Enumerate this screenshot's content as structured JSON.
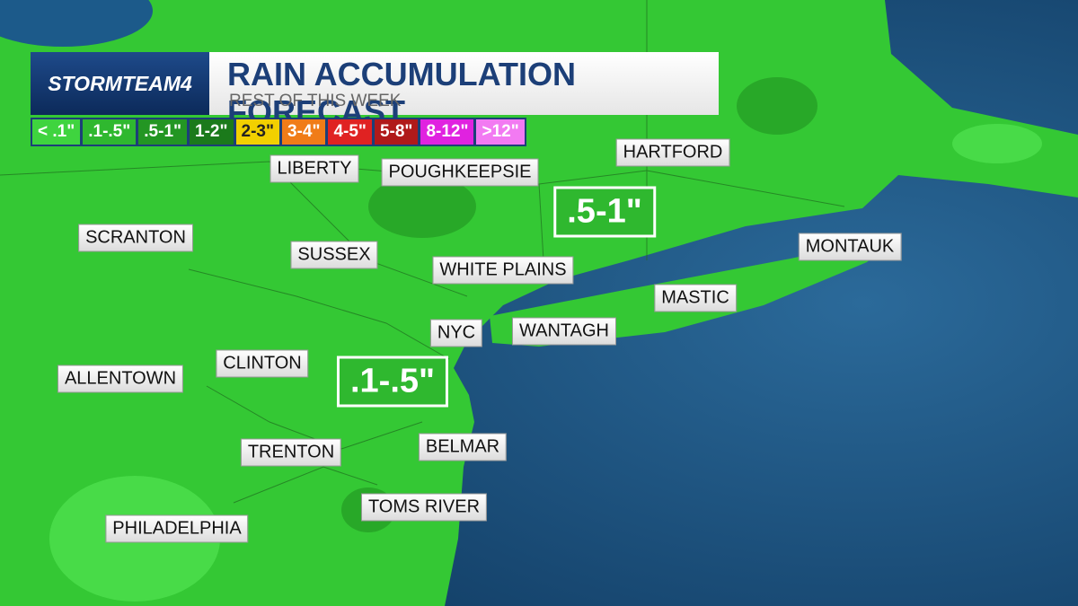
{
  "header": {
    "brand": "STORMTEAM4",
    "title": "RAIN ACCUMULATION FORECAST",
    "subtitle": "REST OF THIS WEEK"
  },
  "legend": [
    {
      "label": "< .1\"",
      "color": "#3fd43f"
    },
    {
      "label": ".1-.5\"",
      "color": "#2fb82f"
    },
    {
      "label": ".5-1\"",
      "color": "#239623"
    },
    {
      "label": "1-2\"",
      "color": "#1b7a1b"
    },
    {
      "label": "2-3\"",
      "color": "#f2d000"
    },
    {
      "label": "3-4\"",
      "color": "#f07c18"
    },
    {
      "label": "4-5\"",
      "color": "#e02222"
    },
    {
      "label": "5-8\"",
      "color": "#b01a1a"
    },
    {
      "label": "8-12\"",
      "color": "#e022e0"
    },
    {
      "label": ">12\"",
      "color": "#f27af2"
    }
  ],
  "cities": [
    "LIBERTY",
    "POUGHKEEPSIE",
    "HARTFORD",
    "SCRANTON",
    "SUSSEX",
    "WHITE PLAINS",
    "MONTAUK",
    "MASTIC",
    "NYC",
    "WANTAGH",
    "CLINTON",
    "ALLENTOWN",
    "TRENTON",
    "BELMAR",
    "TOMS RIVER",
    "PHILADELPHIA"
  ],
  "zones": [
    ".5-1\"",
    ".1-.5\""
  ]
}
